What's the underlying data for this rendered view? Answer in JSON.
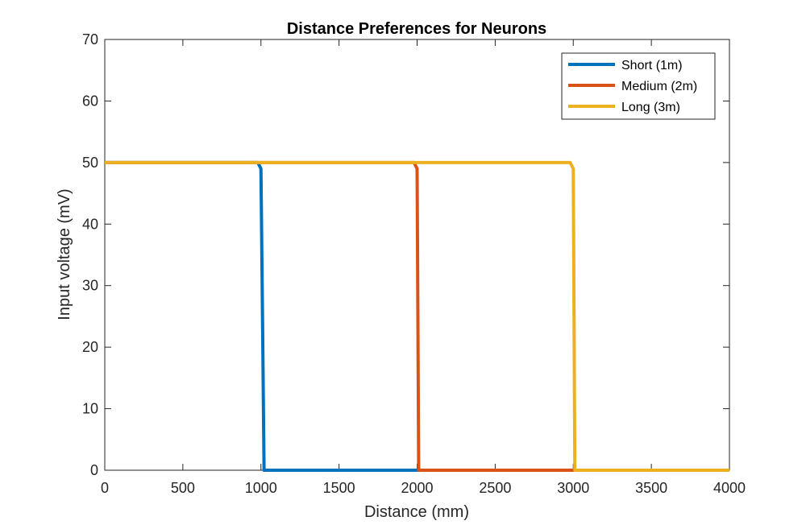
{
  "chart_data": {
    "type": "line",
    "title": "Distance Preferences for Neurons",
    "xlabel": "Distance (mm)",
    "ylabel": "Input voltage (mV)",
    "xlim": [
      0,
      4000
    ],
    "ylim": [
      0,
      70
    ],
    "xticks": [
      0,
      500,
      1000,
      1500,
      2000,
      2500,
      3000,
      3500,
      4000
    ],
    "yticks": [
      0,
      10,
      20,
      30,
      40,
      50,
      60,
      70
    ],
    "grid": false,
    "legend_position": "top-right",
    "series": [
      {
        "name": "Short (1m)",
        "color": "#0072BD",
        "x": [
          0,
          980,
          1000,
          1010,
          1020,
          4000
        ],
        "y": [
          50,
          50,
          49,
          25,
          0,
          0
        ]
      },
      {
        "name": "Medium (2m)",
        "color": "#D95319",
        "x": [
          0,
          1980,
          2000,
          2005,
          2010,
          4000
        ],
        "y": [
          50,
          50,
          49,
          25,
          0,
          0
        ]
      },
      {
        "name": "Long (3m)",
        "color": "#EDB120",
        "x": [
          0,
          2980,
          3000,
          3005,
          3010,
          4000
        ],
        "y": [
          50,
          50,
          49,
          25,
          0,
          0
        ]
      }
    ]
  }
}
